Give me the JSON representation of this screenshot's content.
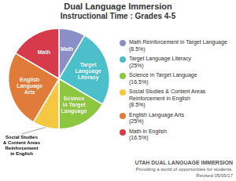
{
  "chart_data": {
    "type": "pie",
    "title": "Dual Language Immersion",
    "subtitle": "Instructional Time : Grades 4-5",
    "categories": [
      "Math Reinforcement in Target Language\n(8.5%)",
      "Target Language Literacy\n(25%)",
      "Science in Target Language\n(16.5%)",
      "Social Studies & Content Areas\nReinforcement in English\n(8.5%)",
      "English Language Arts\n(25%)",
      "Math in English\n(16.5%)"
    ],
    "values": [
      8.5,
      25.0,
      16.5,
      8.5,
      25.0,
      16.5
    ],
    "value_labels": [
      "Math",
      "Target\nLanguage\nLiteracy",
      "Science\nin Target\nLanguage",
      null,
      "English\nLanguage\nArts",
      "Math"
    ],
    "colors": [
      "#8b8fc8",
      "#4bbfca",
      "#8dc63f",
      "#f5c842",
      "#e07b39",
      "#d63b4b"
    ],
    "legend": "right",
    "annotations": [
      {
        "text": "Social Studies\n& Content Areas\nReinforcement\nin English",
        "category": "Social Studies & Content Areas\nReinforcement in English\n(8.5%)"
      },
      {
        "text": "UTAH DUAL LANGUAGE IMMERSION"
      },
      {
        "text": "Providing a world of opportunities for students."
      },
      {
        "text": "Revised 05/05/17"
      }
    ]
  }
}
